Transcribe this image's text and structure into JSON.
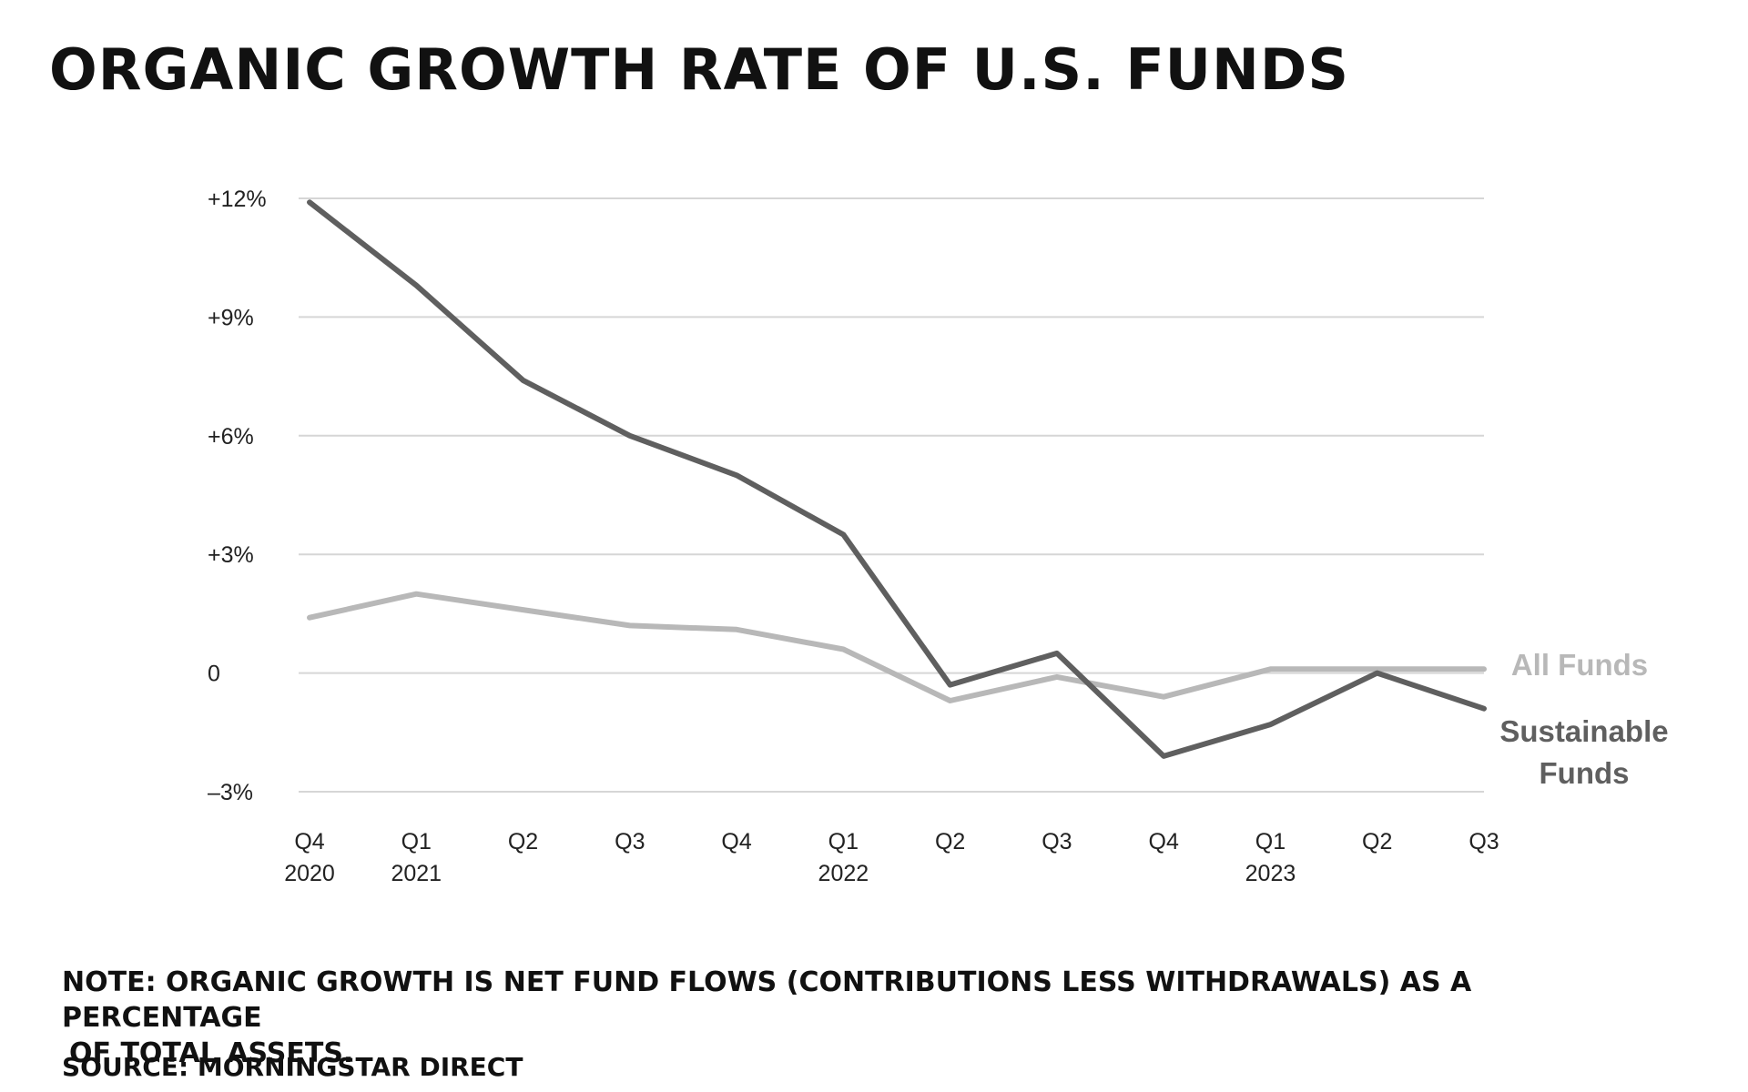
{
  "chart_data": {
    "type": "line",
    "title": "ORGANIC GROWTH RATE OF U.S. FUNDS",
    "xlabel": "",
    "ylabel": "",
    "categories": [
      [
        "Q4",
        "2020"
      ],
      [
        "Q1",
        "2021"
      ],
      [
        "Q2",
        ""
      ],
      [
        "Q3",
        ""
      ],
      [
        "Q4",
        ""
      ],
      [
        "Q1",
        "2022"
      ],
      [
        "Q2",
        ""
      ],
      [
        "Q3",
        ""
      ],
      [
        "Q4",
        ""
      ],
      [
        "Q1",
        "2023"
      ],
      [
        "Q2",
        ""
      ],
      [
        "Q3",
        ""
      ]
    ],
    "y_ticks": [
      {
        "value": 12,
        "label": "+12%"
      },
      {
        "value": 9,
        "label": "+9%"
      },
      {
        "value": 6,
        "label": "+6%"
      },
      {
        "value": 3,
        "label": "+3%"
      },
      {
        "value": 0,
        "label": "0"
      },
      {
        "value": -3,
        "label": "–3%"
      }
    ],
    "ylim": [
      -3,
      12
    ],
    "grid": true,
    "legend": "direct labels at right end of lines",
    "series": [
      {
        "name": "All Funds",
        "label_lines": [
          "All Funds"
        ],
        "color": "#b8b8b8",
        "values": [
          1.4,
          2.0,
          1.6,
          1.2,
          1.1,
          0.6,
          -0.7,
          -0.1,
          -0.6,
          0.1,
          0.1,
          0.1
        ]
      },
      {
        "name": "Sustainable Funds",
        "label_lines": [
          "Sustainable",
          "Funds"
        ],
        "color": "#5f5f5f",
        "values": [
          11.9,
          9.8,
          7.4,
          6.0,
          5.0,
          3.5,
          -0.3,
          0.5,
          -2.1,
          -1.3,
          0.0,
          -0.9
        ]
      }
    ]
  },
  "note": {
    "line1": "NOTE: ORGANIC GROWTH IS NET FUND FLOWS (CONTRIBUTIONS LESS WITHDRAWALS) AS A PERCENTAGE",
    "line2": "OF TOTAL ASSETS."
  },
  "source": "SOURCE: MORNINGSTAR DIRECT",
  "colors": {
    "text": "#111111",
    "grid": "#d6d6d6"
  }
}
